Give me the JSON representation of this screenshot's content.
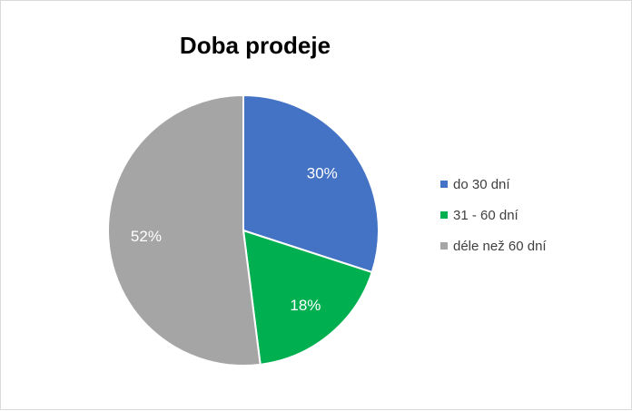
{
  "chart_data": {
    "type": "pie",
    "title": "Doba prodeje",
    "categories": [
      "do 30 dní",
      "31 - 60 dní",
      "déle než 60 dní"
    ],
    "values": [
      30,
      18,
      52
    ],
    "labels": [
      "30%",
      "18%",
      "52%"
    ],
    "colors": [
      "#4472c4",
      "#00b050",
      "#a5a5a5"
    ],
    "legend_position": "right"
  }
}
